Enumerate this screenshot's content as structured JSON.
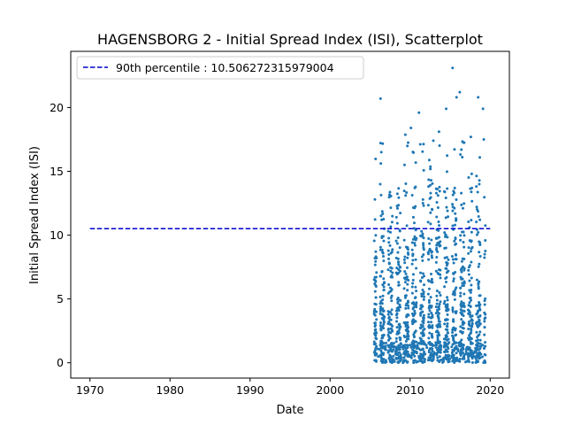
{
  "chart_data": {
    "type": "scatter",
    "title": "HAGENSBORG 2 - Initial Spread Index (ISI), Scatterplot",
    "xlabel": "Date",
    "ylabel": "Initial Spread Index (ISI)",
    "xlim": [
      1967.6,
      2022.4
    ],
    "ylim": [
      -1.2,
      24.4
    ],
    "xticks": [
      "1970",
      "1980",
      "1990",
      "2000",
      "2010",
      "2020"
    ],
    "yticks": [
      "0",
      "5",
      "10",
      "15",
      "20"
    ],
    "grid": false,
    "legend_position": "top-left",
    "reference_line": {
      "label": "90th percentile : 10.506272315979004",
      "value": 10.506272315979004,
      "x_range": [
        1970,
        2020
      ],
      "color": "#0000cc",
      "style": "dashed"
    },
    "series": [
      {
        "marker_color": "#1f77b4",
        "x_range": [
          2005.5,
          2019.4
        ],
        "seasonal_years": [
          2005,
          2006,
          2007,
          2008,
          2009,
          2010,
          2011,
          2012,
          2013,
          2014,
          2015,
          2016,
          2017,
          2018,
          2019
        ],
        "y_min": 0,
        "y_max": 23.1,
        "notable_points": [
          {
            "x": 2015.3,
            "y": 23.1
          },
          {
            "x": 2016.2,
            "y": 21.2
          },
          {
            "x": 2015.8,
            "y": 20.8
          },
          {
            "x": 2018.5,
            "y": 20.8
          },
          {
            "x": 2006.3,
            "y": 20.7
          },
          {
            "x": 2011.1,
            "y": 19.6
          },
          {
            "x": 2014.5,
            "y": 19.9
          },
          {
            "x": 2019.1,
            "y": 19.9
          },
          {
            "x": 2010.1,
            "y": 18.4
          },
          {
            "x": 2013.6,
            "y": 18.1
          },
          {
            "x": 2019.2,
            "y": 17.5
          },
          {
            "x": 2012.9,
            "y": 17.4
          },
          {
            "x": 2006.4,
            "y": 16.5
          },
          {
            "x": 2016.4,
            "y": 16.7
          },
          {
            "x": 2005.6,
            "y": 12.8
          }
        ]
      }
    ]
  }
}
